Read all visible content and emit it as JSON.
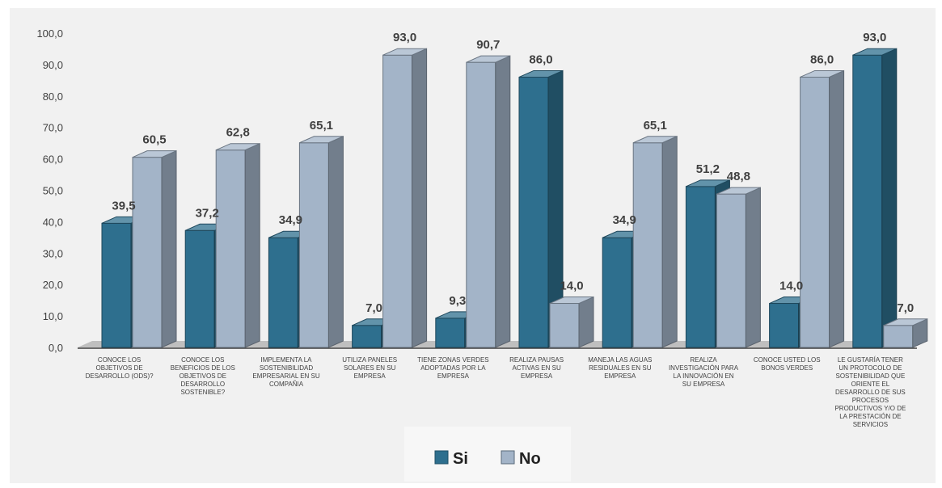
{
  "chart_data": {
    "type": "bar",
    "title": "",
    "xlabel": "",
    "ylabel": "",
    "ylim": [
      0,
      100
    ],
    "yticks": [
      "0,0",
      "10,0",
      "20,0",
      "30,0",
      "40,0",
      "50,0",
      "60,0",
      "70,0",
      "80,0",
      "90,0",
      "100,0"
    ],
    "grid": false,
    "legend": "bottom-center",
    "categories": [
      [
        "CONOCE LOS",
        "OBJETIVOS DE",
        "DESARROLLO (ODS)?"
      ],
      [
        "CONOCE LOS",
        "BENEFICIOS DE LOS",
        "OBJETIVOS DE",
        "DESARROLLO",
        "SOSTENIBLE?"
      ],
      [
        "IMPLEMENTA LA",
        "SOSTENIBILIDAD",
        "EMPRESARIAL EN SU",
        "COMPAÑIA"
      ],
      [
        "UTILIZA PANELES",
        "SOLARES EN SU",
        "EMPRESA"
      ],
      [
        "TIENE ZONAS VERDES",
        "ADOPTADAS POR LA",
        "EMPRESA"
      ],
      [
        "REALIZA PAUSAS",
        "ACTIVAS EN SU",
        "EMPRESA"
      ],
      [
        "MANEJA LAS AGUAS",
        "RESIDUALES EN SU",
        "EMPRESA"
      ],
      [
        "REALIZA",
        "INVESTIGACIÓN PARA",
        "LA INNOVACIÓN EN",
        "SU EMPRESA"
      ],
      [
        "CONOCE USTED LOS",
        "BONOS VERDES"
      ],
      [
        "LE GUSTARÍA TENER",
        "UN PROTOCOLO DE",
        "SOSTENIBILIDAD QUE",
        "ORIENTE EL",
        "DESARROLLO DE SUS",
        "PROCESOS",
        "PRODUCTIVOS Y/O DE",
        "LA PRESTACIÓN DE",
        "SERVICIOS"
      ]
    ],
    "series": [
      {
        "name": "Si",
        "color": "#2e6f8e",
        "values": [
          39.5,
          37.2,
          34.9,
          7.0,
          9.3,
          86.0,
          34.9,
          51.2,
          14.0,
          93.0
        ],
        "labels": [
          "39,5",
          "37,2",
          "34,9",
          "7,0",
          "9,3",
          "86,0",
          "34,9",
          "51,2",
          "14,0",
          "93,0"
        ]
      },
      {
        "name": "No",
        "color": "#a3b4c8",
        "values": [
          60.5,
          62.8,
          65.1,
          93.0,
          90.7,
          14.0,
          65.1,
          48.8,
          86.0,
          7.0
        ],
        "labels": [
          "60,5",
          "62,8",
          "65,1",
          "93,0",
          "90,7",
          "14,0",
          "65,1",
          "48,8",
          "86,0",
          "7,0"
        ]
      }
    ]
  }
}
